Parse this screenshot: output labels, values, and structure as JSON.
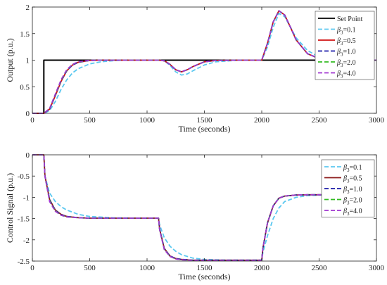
{
  "chart_data": [
    {
      "type": "line",
      "xlabel": "Time (seconds)",
      "ylabel": "Output (p.u.)",
      "xlim": [
        0,
        3000
      ],
      "ylim": [
        0,
        2
      ],
      "xticks": [
        "0",
        "500",
        "1000",
        "1500",
        "2000",
        "2500",
        "3000"
      ],
      "yticks": [
        "0",
        "0.5",
        "1",
        "1.5",
        "2"
      ],
      "legend_position": "top-right",
      "series": [
        {
          "name": "Set Point",
          "color": "#000000",
          "dash": "solid",
          "x": [
            0,
            100,
            100,
            3000
          ],
          "y": [
            0,
            0,
            1,
            1
          ]
        },
        {
          "name": "β3=0.1",
          "color": "#5bc8f0",
          "dash": "dashed",
          "x": [
            0,
            100,
            150,
            200,
            250,
            300,
            350,
            400,
            500,
            600,
            700,
            800,
            1100,
            1150,
            1200,
            1250,
            1300,
            1350,
            1400,
            1500,
            1600,
            1800,
            2000,
            2050,
            2100,
            2150,
            2200,
            2250,
            2300,
            2400,
            2500,
            2600,
            2800,
            3000
          ],
          "y": [
            0,
            0,
            0.05,
            0.22,
            0.45,
            0.63,
            0.76,
            0.84,
            0.93,
            0.97,
            0.99,
            1,
            1,
            0.99,
            0.9,
            0.78,
            0.72,
            0.74,
            0.8,
            0.91,
            0.97,
            1,
            1,
            1.25,
            1.62,
            1.88,
            1.82,
            1.62,
            1.42,
            1.18,
            1.06,
            1.02,
            1,
            1
          ]
        },
        {
          "name": "β3=0.5",
          "color": "#d01010",
          "dash": "solid",
          "x": [
            0,
            100,
            150,
            200,
            250,
            300,
            350,
            400,
            500,
            600,
            700,
            800,
            1100,
            1150,
            1200,
            1250,
            1300,
            1350,
            1400,
            1500,
            1600,
            1800,
            2000,
            2050,
            2100,
            2150,
            2200,
            2250,
            2300,
            2400,
            2500,
            2600,
            2800,
            3000
          ],
          "y": [
            0,
            0,
            0.08,
            0.33,
            0.6,
            0.8,
            0.91,
            0.96,
            0.995,
            1,
            1,
            1,
            1,
            0.99,
            0.92,
            0.82,
            0.78,
            0.82,
            0.88,
            0.97,
            0.995,
            1,
            1,
            1.32,
            1.72,
            1.93,
            1.85,
            1.62,
            1.38,
            1.12,
            1.03,
            1.01,
            1,
            1
          ]
        },
        {
          "name": "β3=1.0",
          "color": "#1a1aa8",
          "dash": "dashed",
          "x": [
            0,
            100,
            150,
            200,
            250,
            300,
            350,
            400,
            500,
            600,
            700,
            800,
            1100,
            1150,
            1200,
            1250,
            1300,
            1350,
            1400,
            1500,
            1600,
            1800,
            2000,
            2050,
            2100,
            2150,
            2200,
            2250,
            2300,
            2400,
            2500,
            2600,
            2800,
            3000
          ],
          "y": [
            0,
            0,
            0.08,
            0.34,
            0.61,
            0.8,
            0.91,
            0.96,
            0.995,
            1,
            1,
            1,
            1,
            0.99,
            0.92,
            0.82,
            0.78,
            0.82,
            0.88,
            0.97,
            0.995,
            1,
            1,
            1.32,
            1.72,
            1.93,
            1.85,
            1.62,
            1.38,
            1.12,
            1.03,
            1.01,
            1,
            1
          ]
        },
        {
          "name": "β3=2.0",
          "color": "#33bb22",
          "dash": "dashed",
          "x": [
            0,
            100,
            150,
            200,
            250,
            300,
            350,
            400,
            500,
            600,
            700,
            800,
            1100,
            1150,
            1200,
            1250,
            1300,
            1350,
            1400,
            1500,
            1600,
            1800,
            2000,
            2050,
            2100,
            2150,
            2200,
            2250,
            2300,
            2400,
            2500,
            2600,
            2800,
            3000
          ],
          "y": [
            0,
            0,
            0.09,
            0.35,
            0.62,
            0.81,
            0.92,
            0.965,
            0.996,
            1,
            1,
            1,
            1,
            0.99,
            0.92,
            0.82,
            0.78,
            0.82,
            0.88,
            0.97,
            0.995,
            1,
            1,
            1.32,
            1.72,
            1.93,
            1.85,
            1.62,
            1.38,
            1.12,
            1.03,
            1.01,
            1,
            1
          ]
        },
        {
          "name": "β3=4.0",
          "color": "#a035d0",
          "dash": "dashed",
          "x": [
            0,
            100,
            150,
            200,
            250,
            300,
            350,
            400,
            500,
            600,
            700,
            800,
            1100,
            1150,
            1200,
            1250,
            1300,
            1350,
            1400,
            1500,
            1600,
            1800,
            2000,
            2050,
            2100,
            2150,
            2200,
            2250,
            2300,
            2400,
            2500,
            2600,
            2800,
            3000
          ],
          "y": [
            0,
            0,
            0.09,
            0.36,
            0.63,
            0.82,
            0.92,
            0.97,
            0.997,
            1,
            1,
            1,
            1,
            0.99,
            0.92,
            0.82,
            0.78,
            0.82,
            0.88,
            0.97,
            0.995,
            1,
            1,
            1.32,
            1.72,
            1.93,
            1.85,
            1.62,
            1.38,
            1.12,
            1.03,
            1.01,
            1,
            1
          ]
        }
      ]
    },
    {
      "type": "line",
      "xlabel": "Time (seconds)",
      "ylabel": "Control Signal (p.u.)",
      "xlim": [
        0,
        3000
      ],
      "ylim": [
        -2.5,
        0
      ],
      "xticks": [
        "0",
        "500",
        "1000",
        "1500",
        "2000",
        "2500",
        "3000"
      ],
      "yticks": [
        "0",
        "-0.5",
        "-1",
        "-1.5",
        "-2",
        "-2.5"
      ],
      "legend_position": "top-right",
      "series": [
        {
          "name": "β3=0.1",
          "color": "#5bc8f0",
          "dash": "dashed",
          "x": [
            0,
            100,
            110,
            150,
            200,
            250,
            300,
            400,
            500,
            700,
            900,
            1100,
            1110,
            1150,
            1200,
            1250,
            1300,
            1400,
            1500,
            1700,
            2000,
            2010,
            2050,
            2100,
            2150,
            2200,
            2300,
            2400,
            2500,
            2600
          ],
          "y": [
            0,
            0,
            -0.5,
            -0.9,
            -1.1,
            -1.22,
            -1.3,
            -1.4,
            -1.45,
            -1.48,
            -1.49,
            -1.49,
            -1.65,
            -1.95,
            -2.15,
            -2.27,
            -2.35,
            -2.43,
            -2.46,
            -2.48,
            -2.48,
            -2.3,
            -1.9,
            -1.5,
            -1.25,
            -1.1,
            -1,
            -0.96,
            -0.95,
            -0.94
          ]
        },
        {
          "name": "β3=0.5",
          "color": "#8b1a1a",
          "dash": "solid",
          "x": [
            0,
            100,
            110,
            150,
            200,
            250,
            300,
            400,
            500,
            700,
            900,
            1100,
            1110,
            1150,
            1200,
            1250,
            1300,
            1400,
            1500,
            1700,
            2000,
            2010,
            2050,
            2100,
            2150,
            2200,
            2300,
            2400,
            2500,
            2600
          ],
          "y": [
            0,
            0,
            -0.5,
            -1.05,
            -1.3,
            -1.4,
            -1.45,
            -1.48,
            -1.49,
            -1.49,
            -1.49,
            -1.49,
            -1.75,
            -2.2,
            -2.38,
            -2.44,
            -2.46,
            -2.48,
            -2.48,
            -2.48,
            -2.48,
            -2.2,
            -1.6,
            -1.2,
            -1.02,
            -0.97,
            -0.945,
            -0.94,
            -0.94,
            -0.94
          ]
        },
        {
          "name": "β3=1.0",
          "color": "#1a1aa8",
          "dash": "dashed",
          "x": [
            0,
            100,
            110,
            150,
            200,
            250,
            300,
            400,
            500,
            700,
            900,
            1100,
            1110,
            1150,
            1200,
            1250,
            1300,
            1400,
            1500,
            1700,
            2000,
            2010,
            2050,
            2100,
            2150,
            2200,
            2300,
            2400,
            2500,
            2600
          ],
          "y": [
            0,
            0,
            -0.5,
            -1.06,
            -1.31,
            -1.41,
            -1.45,
            -1.48,
            -1.49,
            -1.49,
            -1.49,
            -1.49,
            -1.75,
            -2.21,
            -2.38,
            -2.44,
            -2.46,
            -2.48,
            -2.48,
            -2.48,
            -2.48,
            -2.2,
            -1.6,
            -1.2,
            -1.02,
            -0.97,
            -0.945,
            -0.94,
            -0.94,
            -0.94
          ]
        },
        {
          "name": "β3=2.0",
          "color": "#33bb22",
          "dash": "dashed",
          "x": [
            0,
            100,
            110,
            150,
            200,
            250,
            300,
            400,
            500,
            700,
            900,
            1100,
            1110,
            1150,
            1200,
            1250,
            1300,
            1400,
            1500,
            1700,
            2000,
            2010,
            2050,
            2100,
            2150,
            2200,
            2300,
            2400,
            2500,
            2600
          ],
          "y": [
            0,
            0,
            -0.5,
            -1.08,
            -1.32,
            -1.42,
            -1.46,
            -1.48,
            -1.49,
            -1.49,
            -1.49,
            -1.49,
            -1.76,
            -2.22,
            -2.39,
            -2.45,
            -2.47,
            -2.48,
            -2.48,
            -2.48,
            -2.48,
            -2.2,
            -1.6,
            -1.2,
            -1.02,
            -0.97,
            -0.945,
            -0.94,
            -0.94,
            -0.94
          ]
        },
        {
          "name": "β3=4.0",
          "color": "#a035d0",
          "dash": "dashed",
          "x": [
            0,
            100,
            110,
            150,
            200,
            250,
            300,
            400,
            500,
            700,
            900,
            1100,
            1110,
            1150,
            1200,
            1250,
            1300,
            1400,
            1500,
            1700,
            2000,
            2010,
            2050,
            2100,
            2150,
            2200,
            2300,
            2400,
            2500,
            2600
          ],
          "y": [
            0,
            0,
            -0.5,
            -1.1,
            -1.33,
            -1.42,
            -1.46,
            -1.48,
            -1.49,
            -1.49,
            -1.49,
            -1.49,
            -1.77,
            -2.23,
            -2.39,
            -2.45,
            -2.47,
            -2.48,
            -2.48,
            -2.48,
            -2.48,
            -2.2,
            -1.6,
            -1.2,
            -1.02,
            -0.97,
            -0.945,
            -0.94,
            -0.94,
            -0.94
          ]
        }
      ]
    }
  ]
}
